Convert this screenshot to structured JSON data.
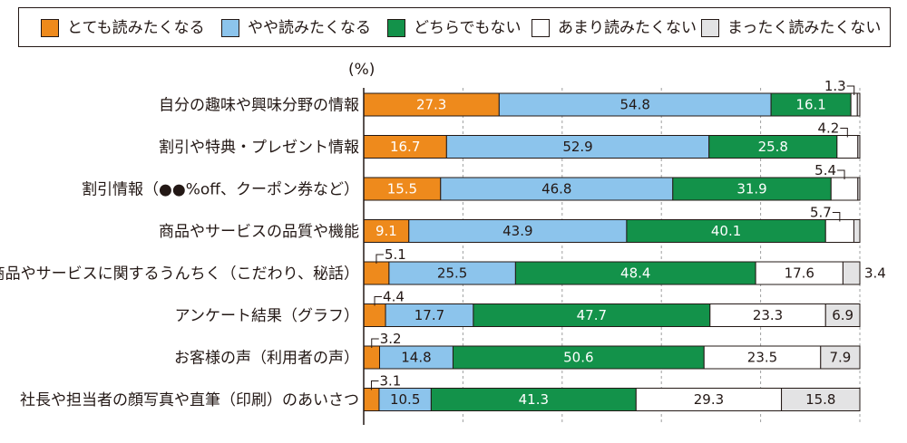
{
  "chart_data": {
    "type": "bar",
    "orientation": "horizontal",
    "stacked": true,
    "unit": "(%)",
    "xlim": [
      0,
      100
    ],
    "grid": true,
    "legend_position": "top",
    "series": [
      {
        "name": "とても読みたくなる",
        "color": "#ee8a1c",
        "values": [
          27.3,
          16.7,
          15.5,
          9.1,
          5.1,
          4.4,
          3.2,
          3.1
        ]
      },
      {
        "name": "やや読みたくなる",
        "color": "#8cc4ec",
        "values": [
          54.8,
          52.9,
          46.8,
          43.9,
          25.5,
          17.7,
          14.8,
          10.5
        ]
      },
      {
        "name": "どちらでもない",
        "color": "#13924a",
        "values": [
          16.1,
          25.8,
          31.9,
          40.1,
          48.4,
          47.7,
          50.6,
          41.3
        ]
      },
      {
        "name": "あまり読みたくない",
        "color": "#ffffff",
        "values": [
          1.3,
          4.2,
          5.4,
          5.7,
          17.6,
          23.3,
          23.5,
          29.3
        ]
      },
      {
        "name": "まったく読みたくない",
        "color": "#e3e3e4",
        "values": [
          0.5,
          0.4,
          0.4,
          1.2,
          3.4,
          6.9,
          7.9,
          15.8
        ]
      }
    ],
    "categories": [
      "自分の趣味や興味分野の情報",
      "割引や特典・プレゼント情報",
      "割引情報（●●%off、クーポン券など）",
      "商品やサービスの品質や機能",
      "商品やサービスに関するうんちく（こだわり、秘話）",
      "アンケート結果（グラフ）",
      "お客様の声（利用者の声）",
      "社長や担当者の顔写真や直筆（印刷）のあいさつ"
    ],
    "data_labels": [
      [
        "27.3",
        "54.8",
        "16.1",
        "1.3",
        ""
      ],
      [
        "16.7",
        "52.9",
        "25.8",
        "4.2",
        ""
      ],
      [
        "15.5",
        "46.8",
        "31.9",
        "5.4",
        ""
      ],
      [
        "9.1",
        "43.9",
        "40.1",
        "5.7",
        ""
      ],
      [
        "5.1",
        "25.5",
        "48.4",
        "17.6",
        "3.4"
      ],
      [
        "4.4",
        "17.7",
        "47.7",
        "23.3",
        "6.9"
      ],
      [
        "3.2",
        "14.8",
        "50.6",
        "23.5",
        "7.9"
      ],
      [
        "3.1",
        "10.5",
        "41.3",
        "29.3",
        "15.8"
      ]
    ]
  }
}
